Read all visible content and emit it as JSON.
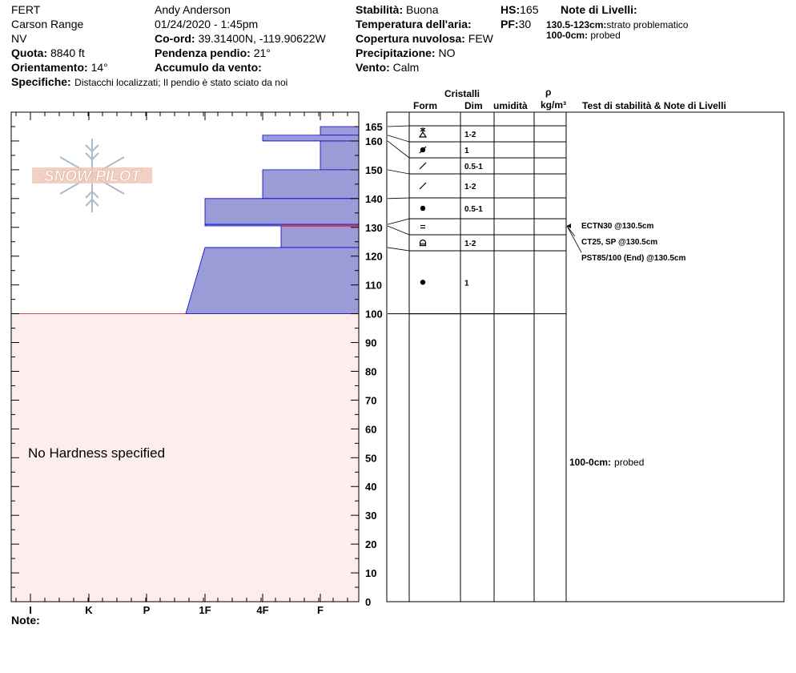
{
  "header": {
    "site": "FERT",
    "range": "Carson Range",
    "state": "NV",
    "elevation_label": "Quota:",
    "elevation_value": "8840 ft",
    "aspect_label": "Orientamento:",
    "aspect_value": "14°",
    "specifics_label": "Specifiche:",
    "specifics_value": "Distacchi localizzati;  Il pendio è stato sciato da noi",
    "observer": "Andy Anderson",
    "datetime": "01/24/2020 - 1:45pm",
    "coord_label": "Co-ord:",
    "coord_value": "39.31400N, -119.90622W",
    "slope_label": "Pendenza pendio:",
    "slope_value": "21°",
    "wind_loading_label": "Accumulo da vento:",
    "wind_loading_value": "",
    "stability_label": "Stabilità:",
    "stability_value": "Buona",
    "air_temp_label": "Temperatura dell'aria:",
    "air_temp_value": "",
    "cloud_label": "Copertura nuvolosa:",
    "cloud_value": "FEW",
    "precip_label": "Precipitazione:",
    "precip_value": "NO",
    "wind_label": "Vento:",
    "wind_value": "Calm",
    "hs_label": "HS:",
    "hs_value": "165",
    "pf_label": "PF:",
    "pf_value": "30",
    "layer_notes_title": "Note di Livelli:",
    "layer_note_1_range": "130.5-123cm:",
    "layer_note_1_text": "strato problematico",
    "layer_note_2_range": "100-0cm:",
    "layer_note_2_text": "probed"
  },
  "logo_text": "SNOW PILOT",
  "no_hardness_text": "No Hardness specified",
  "notes_label": "Note:",
  "table_headers": {
    "crystals": "Cristalli",
    "form": "Form",
    "size": "Dim",
    "moisture": "umidità",
    "rho": "ρ",
    "density_unit": "kg/m³",
    "tests": "Test di stabilità & Note di Livelli"
  },
  "chart_data": {
    "type": "snow-profile",
    "ylim": [
      0,
      165
    ],
    "depth_ticks": [
      0,
      10,
      20,
      30,
      40,
      50,
      60,
      70,
      80,
      90,
      100,
      110,
      120,
      130,
      140,
      150,
      160,
      165
    ],
    "hardness_labels": [
      "I",
      "K",
      "P",
      "1F",
      "4F",
      "F"
    ],
    "layers": [
      {
        "top": 165,
        "bottom": 162,
        "hardness_top": "F",
        "hardness_bottom": "F"
      },
      {
        "top": 162,
        "bottom": 160,
        "hardness_top": "4F",
        "hardness_bottom": "4F"
      },
      {
        "top": 160,
        "bottom": 150,
        "hardness_top": "F",
        "hardness_bottom": "F"
      },
      {
        "top": 150,
        "bottom": 140,
        "hardness_top": "4F",
        "hardness_bottom": "4F"
      },
      {
        "top": 140,
        "bottom": 131,
        "hardness_top": "1F",
        "hardness_bottom": "1F"
      },
      {
        "top": 131,
        "bottom": 130.5,
        "hardness_top": "1F",
        "hardness_bottom": "1F"
      },
      {
        "top": 130.5,
        "bottom": 123,
        "hardness_top": "4F-",
        "hardness_bottom": "4F-"
      },
      {
        "top": 123,
        "bottom": 100,
        "hardness_top": "1F",
        "hardness_bottom": "P+"
      }
    ],
    "crystal_rows": [
      {
        "top": 165,
        "bottom": 162,
        "form": "ppgp",
        "size": "1-2"
      },
      {
        "top": 162,
        "bottom": 160,
        "form": "rgsr",
        "size": "1"
      },
      {
        "top": 160,
        "bottom": 150,
        "form": "mf",
        "size": "0.5-1"
      },
      {
        "top": 150,
        "bottom": 140,
        "form": "mf",
        "size": "1-2"
      },
      {
        "top": 140,
        "bottom": 131,
        "form": "rg",
        "size": "0.5-1"
      },
      {
        "top": 131,
        "bottom": 130.5,
        "form": "sh",
        "size": ""
      },
      {
        "top": 130.5,
        "bottom": 123,
        "form": "fcxr",
        "size": "1-2"
      },
      {
        "top": 123,
        "bottom": 100,
        "form": "rg",
        "size": "1"
      }
    ],
    "problem_layer_depth": 130.5,
    "tests": [
      "ECTN30 @130.5cm",
      "CT25, SP @130.5cm",
      "PST85/100 (End) @130.5cm"
    ],
    "probed_note_range": "100-0cm:",
    "probed_note_text": "probed",
    "colors": {
      "layer_fill": "#9B9BD8",
      "layer_edge": "#0000CC",
      "no_hardness_bg": "#FDEEED",
      "problem_line": "#FF0000"
    }
  }
}
